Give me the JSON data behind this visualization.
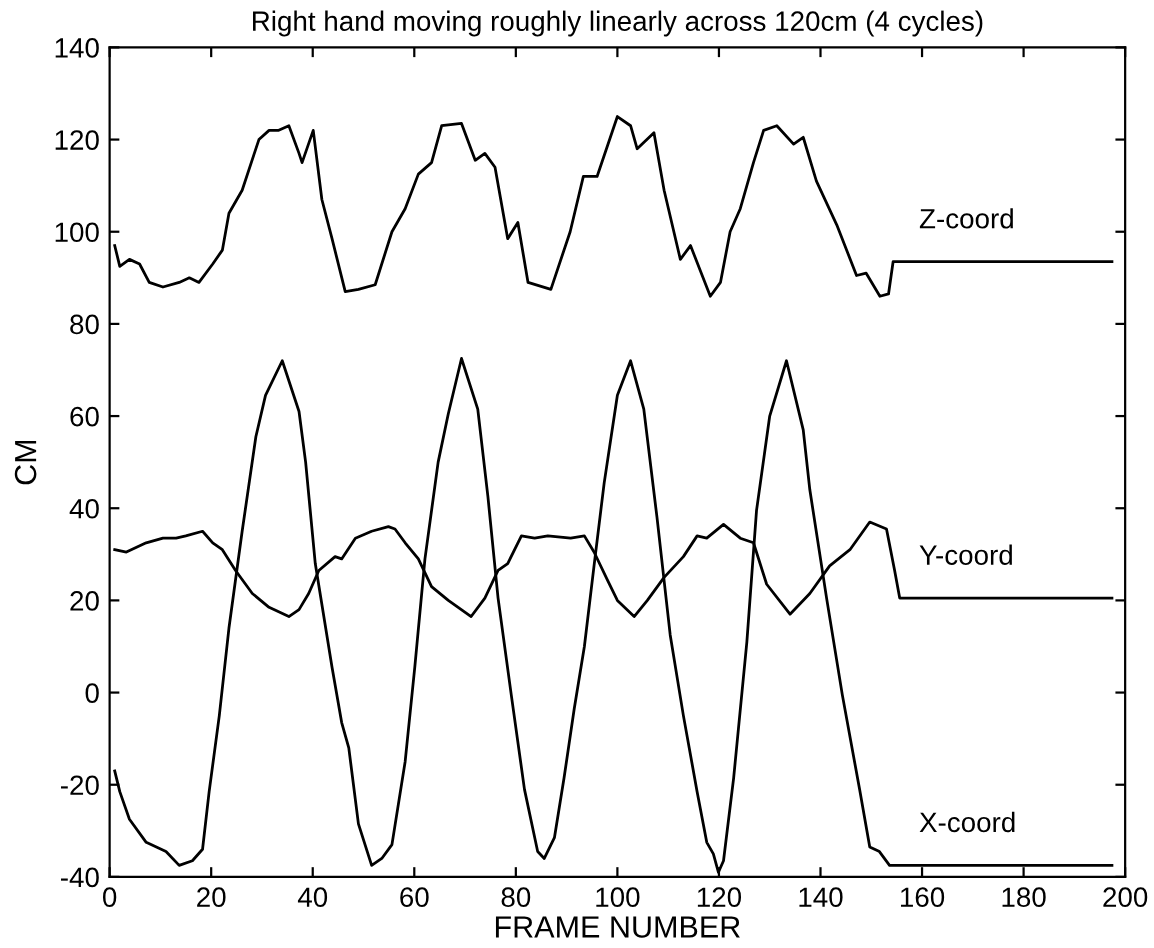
{
  "chart_data": {
    "type": "line",
    "title": "Right hand moving roughly linearly across 120cm (4 cycles)",
    "xlabel": "FRAME NUMBER",
    "ylabel": "CM",
    "xlim": [
      0,
      200
    ],
    "xticks": [
      0,
      20,
      40,
      60,
      80,
      100,
      120,
      140,
      160,
      180,
      200
    ],
    "ylim": [
      -40,
      140
    ],
    "yticks": [
      -40,
      -20,
      0,
      20,
      40,
      60,
      80,
      100,
      120,
      140
    ],
    "grid": false,
    "legend": false,
    "marker": "none",
    "line_style": "solid",
    "series": [
      {
        "name": "Z-coord",
        "color": "#000000",
        "x": [
          1,
          2,
          3.9,
          5.9,
          7.8,
          10.5,
          13.7,
          15.7,
          17.6,
          20.3,
          22.2,
          23.5,
          26.1,
          29.4,
          31.4,
          33.3,
          35.3,
          37.3,
          37.9,
          40.1,
          41.8,
          43.8,
          46.4,
          49,
          52.3,
          55.6,
          58.2,
          60.8,
          63.4,
          65.4,
          69.3,
          72,
          73.9,
          75.9,
          78.4,
          80.4,
          82.4,
          86.9,
          90.7,
          93.3,
          96,
          100,
          102.6,
          103.9,
          107.2,
          109.2,
          112.4,
          114.4,
          118.3,
          120.3,
          122.2,
          124.2,
          126.8,
          128.8,
          131.4,
          134.7,
          136.6,
          139.2,
          143.2,
          147.1,
          149,
          151.7,
          153.4,
          154.3,
          197.4
        ],
        "values": [
          97,
          92.5,
          94,
          93,
          89,
          88,
          89,
          90,
          89,
          93,
          96,
          104,
          109,
          120,
          122,
          122,
          123,
          117,
          115,
          122,
          107,
          98.5,
          87,
          87.5,
          88.5,
          100,
          105,
          112.5,
          115,
          123,
          123.5,
          115.5,
          117,
          114,
          98.5,
          102,
          89,
          87.5,
          100,
          112,
          112,
          125,
          123,
          118,
          121.5,
          109,
          94,
          97,
          86,
          89,
          100,
          105,
          115,
          122,
          123,
          119,
          120.5,
          111,
          101.5,
          90.5,
          91,
          86,
          86.5,
          93.5,
          93.5
        ]
      },
      {
        "name": "Y-coord",
        "color": "#000000",
        "x": [
          1,
          3.3,
          7.2,
          10.5,
          13.1,
          15,
          18.3,
          20.3,
          22.2,
          24.8,
          28.1,
          31.4,
          35.3,
          37.3,
          39.2,
          41.2,
          44.4,
          45.7,
          48.4,
          51.6,
          54.9,
          56.2,
          58.2,
          60.8,
          63.4,
          66.7,
          71.2,
          73.9,
          76.5,
          78.4,
          81.1,
          83.7,
          86.3,
          90.8,
          93.5,
          95.4,
          98,
          100,
          103.3,
          105.9,
          109.2,
          113,
          115.7,
          117.6,
          120.9,
          124.2,
          126.8,
          129.4,
          134,
          137.9,
          141.8,
          145.8,
          149.7,
          153,
          154.6,
          155.6,
          197.4
        ],
        "values": [
          31,
          30.5,
          32.5,
          33.5,
          33.5,
          34,
          35,
          32.5,
          31,
          26.5,
          21.5,
          18.5,
          16.5,
          18,
          21.5,
          26.5,
          29.5,
          29,
          33.5,
          35,
          36,
          35.5,
          32.5,
          29,
          23,
          20,
          16.5,
          20.5,
          26.5,
          28,
          34,
          33.5,
          34,
          33.5,
          34,
          30.5,
          24.5,
          20,
          16.5,
          20,
          25,
          29.5,
          34,
          33.5,
          36.5,
          33.5,
          32.5,
          23.5,
          17,
          21.5,
          27.5,
          31,
          37,
          35.5,
          26.5,
          20.5,
          20.5
        ]
      },
      {
        "name": "X-coord",
        "color": "#000000",
        "x": [
          1,
          2,
          3.9,
          7.2,
          11.1,
          13.7,
          16.3,
          18.3,
          19.6,
          21.6,
          23.5,
          26.1,
          28.8,
          30.7,
          34,
          37.3,
          38.6,
          40.5,
          43.8,
          45.7,
          47.1,
          49,
          51.6,
          53.6,
          55.6,
          58.2,
          60.1,
          62.1,
          64.7,
          66.7,
          69.3,
          72.5,
          74.5,
          76.5,
          79.1,
          81.7,
          84.3,
          85.6,
          87.6,
          89.5,
          91.5,
          93.5,
          95.4,
          97.4,
          100,
          102.6,
          105.2,
          107.8,
          110.4,
          113,
          115.7,
          117.6,
          118.9,
          119.9,
          120.9,
          122.9,
          125.5,
          127.4,
          130,
          133.3,
          136.6,
          137.9,
          141.2,
          144.3,
          147.7,
          149.7,
          151.6,
          153.6,
          155.6,
          197.4
        ],
        "values": [
          -17,
          -21.5,
          -27.5,
          -32.5,
          -34.5,
          -37.5,
          -36.5,
          -34,
          -21.5,
          -5,
          14,
          35,
          55.5,
          64.5,
          72,
          61,
          50,
          28,
          5.5,
          -6.5,
          -12,
          -28.5,
          -37.5,
          -36,
          -33,
          -15,
          5.5,
          29,
          50,
          60.5,
          72.5,
          61.5,
          42.5,
          20.5,
          -0.5,
          -21,
          -34.5,
          -36,
          -31.5,
          -18.5,
          -3.5,
          10,
          27.5,
          45.5,
          64.5,
          72,
          61.5,
          38,
          12.5,
          -5,
          -21.5,
          -32.5,
          -35,
          -39,
          -36.5,
          -18.5,
          11,
          39.5,
          60,
          72,
          57,
          44,
          20.5,
          -0.5,
          -21,
          -33.5,
          -34.5,
          -37.5,
          -37.5,
          -37.5
        ]
      }
    ]
  }
}
